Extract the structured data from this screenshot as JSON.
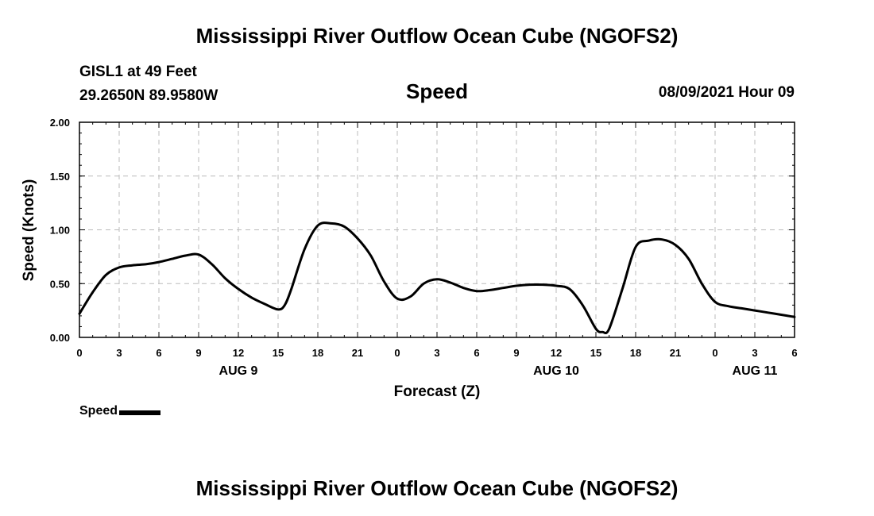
{
  "header": {
    "title": "Mississippi River Outflow Ocean Cube (NGOFS2)",
    "station_name": "GISL1 at 49 Feet",
    "coordinates": "29.2650N  89.9580W",
    "variable": "Speed",
    "datetime": "08/09/2021 Hour 09"
  },
  "footer": {
    "title": "Mississippi River Outflow Ocean Cube (NGOFS2)"
  },
  "legend": {
    "label": "Speed"
  },
  "chart_data": {
    "type": "line",
    "title": "Speed",
    "xlabel": "Forecast (Z)",
    "ylabel": "Speed (Knots)",
    "xlim": [
      0,
      54
    ],
    "ylim": [
      0,
      2.0
    ],
    "grid": true,
    "x_ticks": [
      {
        "hour": 0,
        "label": "0"
      },
      {
        "hour": 3,
        "label": "3"
      },
      {
        "hour": 6,
        "label": "6"
      },
      {
        "hour": 9,
        "label": "9"
      },
      {
        "hour": 12,
        "label": "12"
      },
      {
        "hour": 15,
        "label": "15"
      },
      {
        "hour": 18,
        "label": "18"
      },
      {
        "hour": 21,
        "label": "21"
      },
      {
        "hour": 24,
        "label": "0"
      },
      {
        "hour": 27,
        "label": "3"
      },
      {
        "hour": 30,
        "label": "6"
      },
      {
        "hour": 33,
        "label": "9"
      },
      {
        "hour": 36,
        "label": "12"
      },
      {
        "hour": 39,
        "label": "15"
      },
      {
        "hour": 42,
        "label": "18"
      },
      {
        "hour": 45,
        "label": "21"
      },
      {
        "hour": 48,
        "label": "0"
      },
      {
        "hour": 51,
        "label": "3"
      },
      {
        "hour": 54,
        "label": "6"
      }
    ],
    "y_ticks": [
      {
        "value": 0.0,
        "label": "0.00"
      },
      {
        "value": 0.5,
        "label": "0.50"
      },
      {
        "value": 1.0,
        "label": "1.00"
      },
      {
        "value": 1.5,
        "label": "1.50"
      },
      {
        "value": 2.0,
        "label": "2.00"
      }
    ],
    "date_labels": [
      {
        "hour": 12,
        "label": "AUG 9"
      },
      {
        "hour": 36,
        "label": "AUG 10"
      },
      {
        "hour": 51,
        "label": "AUG 11"
      }
    ],
    "series": [
      {
        "name": "Speed",
        "x": [
          0,
          1,
          2,
          3,
          4,
          5,
          6,
          7,
          8,
          9,
          10,
          11,
          12,
          13,
          14,
          15,
          15.5,
          16,
          17,
          18,
          19,
          20,
          21,
          22,
          23,
          24,
          25,
          26,
          27,
          28,
          29,
          30,
          31,
          32,
          33,
          34,
          35,
          36,
          37,
          38,
          39,
          39.5,
          40,
          41,
          42,
          43,
          44,
          45,
          46,
          47,
          48,
          49,
          50,
          51,
          52,
          53,
          54
        ],
        "values": [
          0.22,
          0.42,
          0.58,
          0.65,
          0.67,
          0.68,
          0.7,
          0.73,
          0.76,
          0.77,
          0.68,
          0.55,
          0.45,
          0.37,
          0.31,
          0.26,
          0.3,
          0.45,
          0.82,
          1.04,
          1.06,
          1.03,
          0.92,
          0.76,
          0.52,
          0.36,
          0.38,
          0.5,
          0.54,
          0.51,
          0.46,
          0.43,
          0.44,
          0.46,
          0.48,
          0.49,
          0.49,
          0.48,
          0.45,
          0.3,
          0.08,
          0.05,
          0.08,
          0.45,
          0.84,
          0.9,
          0.91,
          0.86,
          0.73,
          0.5,
          0.33,
          0.29,
          0.27,
          0.25,
          0.23,
          0.21,
          0.19
        ]
      }
    ]
  }
}
